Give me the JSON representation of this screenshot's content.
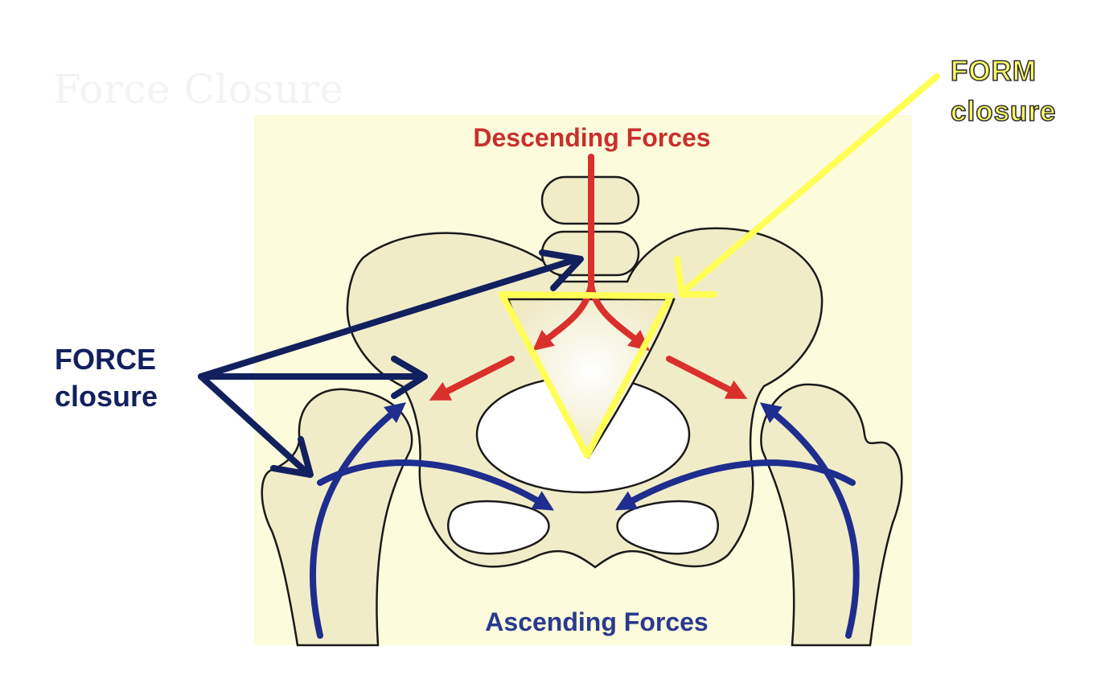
{
  "slide": {
    "title": "Force Closure"
  },
  "diagram": {
    "top_label": "Descending Forces",
    "bottom_label": "Ascending Forces",
    "colors": {
      "panel_background": "#fcfbdc",
      "bone_fill": "#f1ecc8",
      "bone_outline": "#1a1a1a",
      "descending_arrows": "#d9302c",
      "ascending_arrows": "#1e2d8e",
      "force_closure_arrows": "#12205e",
      "form_closure_highlight": "#ffff55"
    }
  },
  "callouts": {
    "force_closure": {
      "line1": "FORCE",
      "line2": "closure"
    },
    "form_closure": {
      "line1": "FORM",
      "line2": "closure"
    }
  }
}
